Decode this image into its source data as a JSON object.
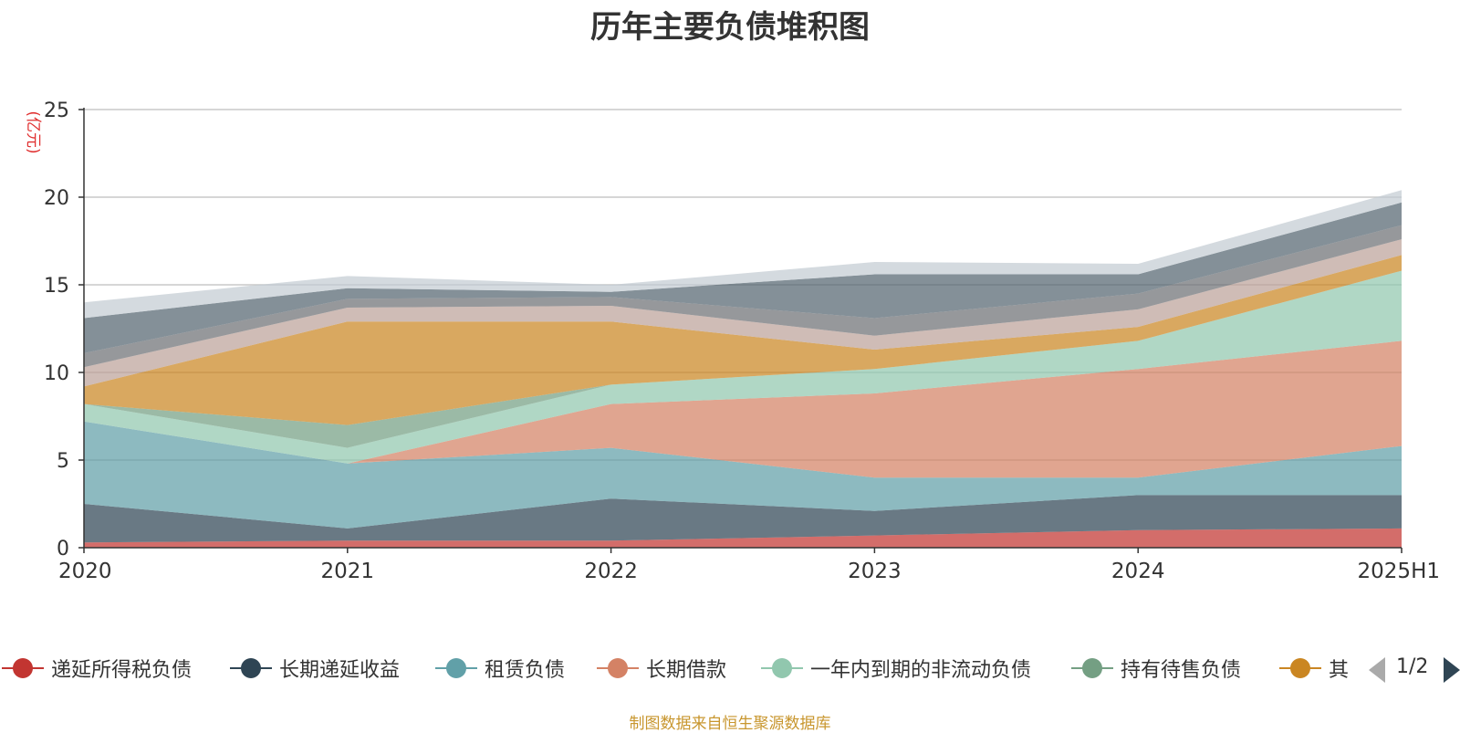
{
  "chart_data": {
    "type": "area",
    "stacked": true,
    "title": "历年主要负债堆积图",
    "ylabel": "(亿元)",
    "x": [
      "2020",
      "2021",
      "2022",
      "2023",
      "2024",
      "2025H1"
    ],
    "ylim": [
      0,
      25
    ],
    "yticks": [
      0,
      5,
      10,
      15,
      20,
      25
    ],
    "grid": true,
    "legend_position": "bottom",
    "series": [
      {
        "name": "递延所得税负债",
        "color": "#c23531",
        "values": [
          0.3,
          0.4,
          0.4,
          0.7,
          1.0,
          1.1
        ]
      },
      {
        "name": "长期递延收益",
        "color": "#2f4554",
        "values": [
          2.2,
          0.7,
          2.4,
          1.4,
          2.0,
          1.9
        ]
      },
      {
        "name": "租赁负债",
        "color": "#61a0a8",
        "values": [
          4.7,
          3.7,
          2.9,
          1.9,
          1.0,
          2.8
        ]
      },
      {
        "name": "长期借款",
        "color": "#d48265",
        "values": [
          0.0,
          0.0,
          2.5,
          4.8,
          6.2,
          6.0
        ]
      },
      {
        "name": "一年内到期的非流动负债",
        "color": "#91c7ae",
        "values": [
          1.0,
          0.9,
          1.1,
          1.4,
          1.6,
          4.0
        ]
      },
      {
        "name": "持有待售负债",
        "color": "#749f83",
        "values": [
          0.0,
          1.3,
          0.0,
          0.0,
          0.0,
          0.0
        ]
      },
      {
        "name": "其",
        "color": "#ca8622",
        "values": [
          1.0,
          5.9,
          3.6,
          1.1,
          0.8,
          0.9
        ]
      },
      {
        "name": "",
        "color": "#bda29a",
        "values": [
          1.1,
          0.8,
          0.9,
          0.8,
          1.0,
          0.9
        ]
      },
      {
        "name": "",
        "color": "#6e7074",
        "values": [
          0.8,
          0.5,
          0.5,
          1.0,
          0.9,
          0.8
        ]
      },
      {
        "name": "",
        "color": "#546570",
        "values": [
          2.0,
          0.6,
          0.3,
          2.5,
          1.1,
          1.3
        ]
      },
      {
        "name": "",
        "color": "#c4ccd3",
        "values": [
          0.9,
          0.7,
          0.4,
          0.7,
          0.6,
          0.7
        ]
      }
    ]
  },
  "legend": {
    "items": [
      {
        "label": "递延所得税负债",
        "color": "#c23531"
      },
      {
        "label": "长期递延收益",
        "color": "#2f4554"
      },
      {
        "label": "租赁负债",
        "color": "#61a0a8"
      },
      {
        "label": "长期借款",
        "color": "#d48265"
      },
      {
        "label": "一年内到期的非流动负债",
        "color": "#91c7ae"
      },
      {
        "label": "持有待售负债",
        "color": "#749f83"
      },
      {
        "label": "其",
        "color": "#ca8622"
      }
    ],
    "page_indicator": "1/2"
  },
  "source_note": "制图数据来自恒生聚源数据库"
}
